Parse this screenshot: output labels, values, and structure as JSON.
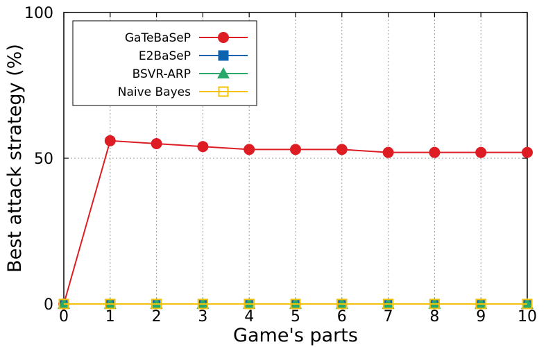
{
  "chart_data": {
    "type": "line",
    "title": "",
    "xlabel": "Game's parts",
    "ylabel": "Best attack strategy (%)",
    "x": [
      0,
      1,
      2,
      3,
      4,
      5,
      6,
      7,
      8,
      9,
      10
    ],
    "xlim": [
      0,
      10
    ],
    "ylim": [
      0,
      100
    ],
    "xticks": [
      "0",
      "1",
      "2",
      "3",
      "4",
      "5",
      "6",
      "7",
      "8",
      "9",
      "10"
    ],
    "yticks": [
      "0",
      "50",
      "100"
    ],
    "grid": true,
    "legend_position": "top-left",
    "series": [
      {
        "name": "GaTeBaSeP",
        "color": "#dd1c24",
        "marker": "circle",
        "values": [
          0,
          56,
          55,
          54,
          53,
          53,
          53,
          52,
          52,
          52,
          52
        ]
      },
      {
        "name": "E2BaSeP",
        "color": "#0c64b0",
        "marker": "square",
        "values": [
          0,
          0,
          0,
          0,
          0,
          0,
          0,
          0,
          0,
          0,
          0
        ]
      },
      {
        "name": "BSVR-ARP",
        "color": "#2aa86a",
        "marker": "triangle",
        "values": [
          0,
          0,
          0,
          0,
          0,
          0,
          0,
          0,
          0,
          0,
          0
        ]
      },
      {
        "name": "Naive Bayes",
        "color": "#f4c20d",
        "marker": "open-square",
        "values": [
          0,
          0,
          0,
          0,
          0,
          0,
          0,
          0,
          0,
          0,
          0
        ]
      }
    ]
  }
}
